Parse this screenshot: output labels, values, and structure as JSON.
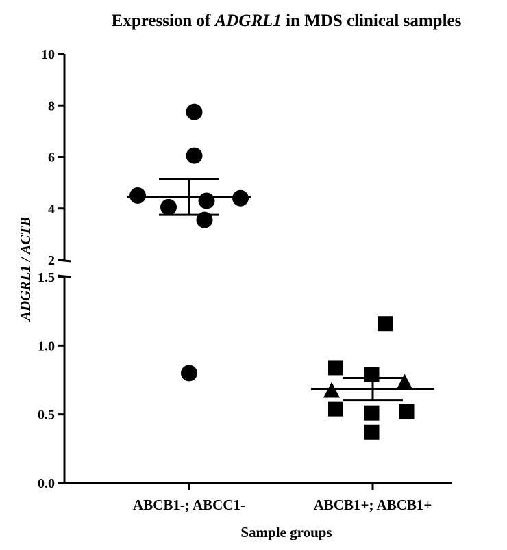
{
  "chart_data": {
    "type": "scatter",
    "title_parts": [
      "Expression of ",
      "ADGRL1",
      " in MDS clinical samples"
    ],
    "ylabel": "ADGRL1 / ACTB",
    "xlabel": "Sample groups",
    "categories": [
      "ABCB1-; ABCC1-",
      "ABCB1+; ABCB1+"
    ],
    "y_axis_segments": [
      {
        "range": [
          0,
          1.5
        ],
        "ticks": [
          0.0,
          0.5,
          1.0,
          1.5
        ],
        "tick_labels": [
          "0.0",
          "0.5",
          "1.0",
          "1.5"
        ]
      },
      {
        "range": [
          2,
          10
        ],
        "ticks": [
          2,
          4,
          6,
          8,
          10
        ],
        "tick_labels": [
          "2",
          "4",
          "6",
          "8",
          "10"
        ]
      }
    ],
    "series": [
      {
        "category": "ABCB1-; ABCC1-",
        "marker": "circle",
        "points": [
          {
            "dx": 0.05,
            "y": 7.75
          },
          {
            "dx": 0.05,
            "y": 6.05
          },
          {
            "dx": -0.5,
            "y": 4.5
          },
          {
            "dx": -0.2,
            "y": 4.05
          },
          {
            "dx": 0.17,
            "y": 4.3
          },
          {
            "dx": 0.5,
            "y": 4.4
          },
          {
            "dx": 0.15,
            "y": 3.55
          },
          {
            "dx": 0.0,
            "y": 0.8
          }
        ]
      },
      {
        "category": "ABCB1+; ABCB1+",
        "marker": "square",
        "points": [
          {
            "dx": 0.12,
            "y": 1.16
          },
          {
            "dx": -0.36,
            "y": 0.84
          },
          {
            "dx": -0.01,
            "y": 0.79
          },
          {
            "dx": -0.36,
            "y": 0.54
          },
          {
            "dx": -0.01,
            "y": 0.51
          },
          {
            "dx": 0.33,
            "y": 0.52
          },
          {
            "dx": -0.01,
            "y": 0.37
          }
        ]
      },
      {
        "category": "ABCB1+; ABCB1+",
        "marker": "triangle",
        "points": [
          {
            "dx": -0.4,
            "y": 0.67
          },
          {
            "dx": 0.31,
            "y": 0.73
          }
        ]
      }
    ],
    "error_bars": [
      {
        "category": "ABCB1-; ABCC1-",
        "segment": 1,
        "mean": 4.45,
        "upper": 5.15,
        "lower": 3.75
      },
      {
        "category": "ABCB1+; ABCB1+",
        "segment": 0,
        "mean": 0.685,
        "upper": 0.765,
        "lower": 0.605
      }
    ]
  }
}
